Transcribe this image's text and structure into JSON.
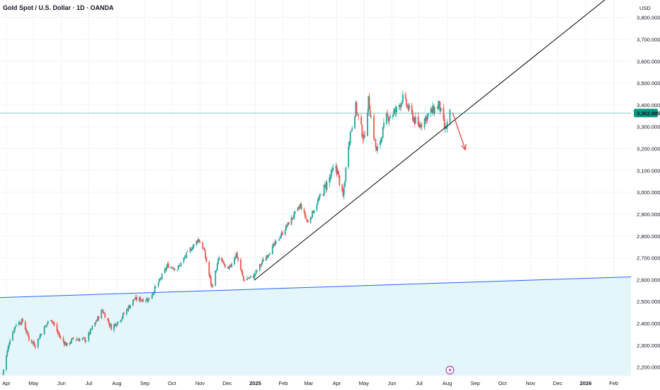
{
  "header": {
    "title": "Gold Spot / U.S. Dollar · 1D · OANDA",
    "currency": "USD"
  },
  "colors": {
    "up": "#26a69a",
    "down": "#ef5350",
    "support_line": "#2962ff",
    "support_fill": "#e5f6fb",
    "trendline": "#000000",
    "arrow": "#e53935",
    "price_line": "#26a69a",
    "price_badge": "#089981",
    "event_icon": "#9c27b0"
  },
  "chart_data": {
    "type": "candlestick",
    "title": "Gold Spot / U.S. Dollar · 1D · OANDA",
    "x_axis": {
      "ticks": [
        "Apr",
        "May",
        "Jun",
        "Jul",
        "Aug",
        "Sep",
        "Oct",
        "Nov",
        "Dec",
        "2025",
        "Feb",
        "Mar",
        "Apr",
        "May",
        "Jun",
        "Jul",
        "Aug",
        "Sep",
        "Oct",
        "Nov",
        "Dec",
        "2026",
        "Feb"
      ],
      "range": [
        "2024-03-25",
        "2026-02-20"
      ]
    },
    "y_axis": {
      "ticks": [
        "3,800.000",
        "3,700.000",
        "3,600.000",
        "3,500.000",
        "3,400.000",
        "3,300.000",
        "3,200.000",
        "3,100.000",
        "3,000.000",
        "2,900.000",
        "2,800.000",
        "2,700.000",
        "2,600.000",
        "2,500.000",
        "2,400.000",
        "2,300.000",
        "2,200.000"
      ],
      "ylim": [
        2160,
        3880
      ],
      "unit": "USD"
    },
    "current_price": {
      "value": 3362.895,
      "label": "3,362.895"
    },
    "price_path": [
      [
        "2024-03-28",
        2170
      ],
      [
        "2024-04-05",
        2330
      ],
      [
        "2024-04-12",
        2400
      ],
      [
        "2024-04-19",
        2410
      ],
      [
        "2024-04-26",
        2330
      ],
      [
        "2024-05-03",
        2300
      ],
      [
        "2024-05-10",
        2360
      ],
      [
        "2024-05-20",
        2425
      ],
      [
        "2024-05-31",
        2330
      ],
      [
        "2024-06-07",
        2300
      ],
      [
        "2024-06-14",
        2330
      ],
      [
        "2024-06-28",
        2325
      ],
      [
        "2024-07-05",
        2380
      ],
      [
        "2024-07-16",
        2460
      ],
      [
        "2024-07-26",
        2380
      ],
      [
        "2024-08-05",
        2420
      ],
      [
        "2024-08-20",
        2510
      ],
      [
        "2024-09-05",
        2510
      ],
      [
        "2024-09-16",
        2585
      ],
      [
        "2024-09-26",
        2665
      ],
      [
        "2024-10-07",
        2650
      ],
      [
        "2024-10-18",
        2720
      ],
      [
        "2024-10-30",
        2785
      ],
      [
        "2024-11-05",
        2740
      ],
      [
        "2024-11-14",
        2565
      ],
      [
        "2024-11-22",
        2700
      ],
      [
        "2024-12-02",
        2640
      ],
      [
        "2024-12-11",
        2720
      ],
      [
        "2024-12-19",
        2600
      ],
      [
        "2024-12-30",
        2615
      ],
      [
        "2025-01-10",
        2690
      ],
      [
        "2025-01-24",
        2770
      ],
      [
        "2025-02-07",
        2860
      ],
      [
        "2025-02-20",
        2940
      ],
      [
        "2025-02-28",
        2860
      ],
      [
        "2025-03-14",
        2985
      ],
      [
        "2025-03-31",
        3120
      ],
      [
        "2025-04-08",
        2980
      ],
      [
        "2025-04-14",
        3230
      ],
      [
        "2025-04-22",
        3390
      ],
      [
        "2025-05-01",
        3240
      ],
      [
        "2025-05-06",
        3420
      ],
      [
        "2025-05-15",
        3180
      ],
      [
        "2025-05-26",
        3340
      ],
      [
        "2025-06-05",
        3370
      ],
      [
        "2025-06-13",
        3430
      ],
      [
        "2025-06-30",
        3300
      ],
      [
        "2025-07-11",
        3355
      ],
      [
        "2025-07-23",
        3400
      ],
      [
        "2025-07-30",
        3280
      ],
      [
        "2025-08-04",
        3362
      ]
    ],
    "annotations": {
      "support_line": {
        "from": [
          "2024-03-25",
          2518
        ],
        "to": [
          "2026-02-20",
          2613
        ]
      },
      "trendline": {
        "from": [
          "2024-12-31",
          2598
        ],
        "to": [
          "2026-01-28",
          3900
        ]
      },
      "arrow": {
        "from": [
          "2025-08-07",
          3365
        ],
        "to": [
          "2025-08-21",
          3195
        ]
      },
      "event_marker": "2025-08-04"
    },
    "legend": []
  }
}
